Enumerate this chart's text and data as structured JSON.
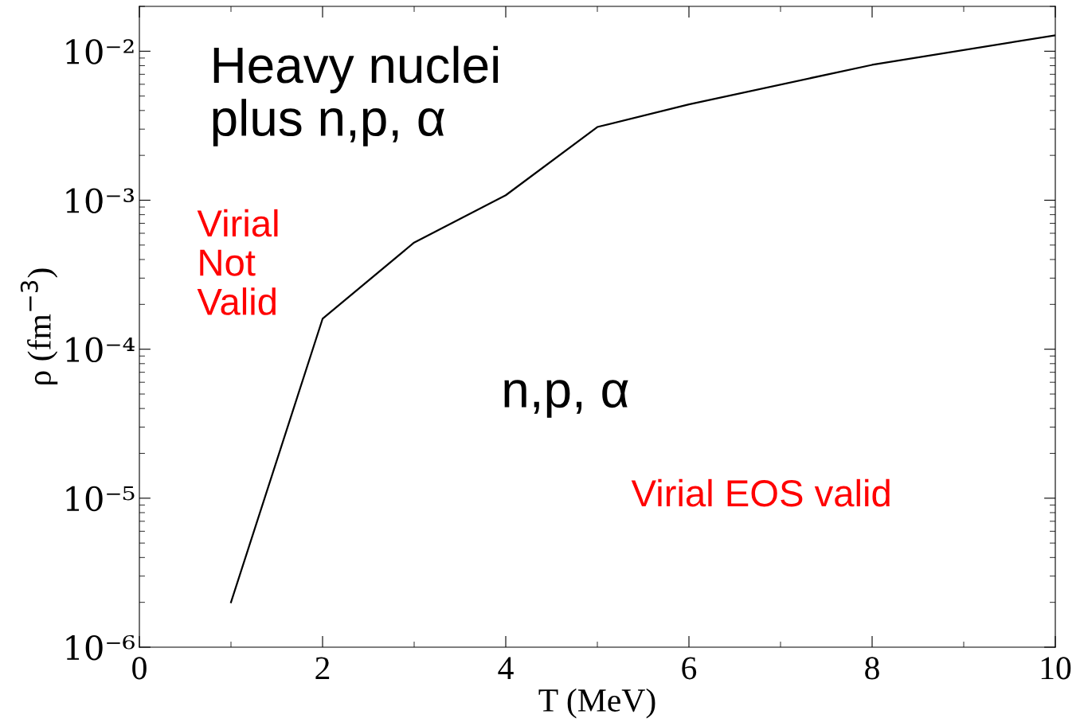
{
  "chart_data": {
    "type": "line",
    "xlabel": "T (MeV)",
    "ylabel": "ρ (fm$^{−3}$)",
    "x": [
      1,
      2,
      3,
      4,
      5,
      6,
      8,
      10
    ],
    "series": [
      {
        "color": "#000000",
        "values": [
          2e-06,
          0.00016,
          0.00052,
          0.00108,
          0.0031,
          0.0044,
          0.0081,
          0.0128
        ]
      }
    ],
    "log": "y",
    "xlim": [
      0,
      10
    ],
    "ylim": [
      1e-06,
      0.02
    ],
    "xticks": [
      0,
      {
        "value": 1,
        "label": null
      },
      2,
      {
        "value": 3,
        "label": null
      },
      4,
      {
        "value": 5,
        "label": null
      },
      6,
      {
        "value": 7,
        "label": null
      },
      8,
      {
        "value": 9,
        "label": null
      },
      10
    ],
    "yticks": [
      {
        "value": 1e-06,
        "label": "10⁻⁶"
      },
      {
        "value": 1e-05,
        "label": "10⁻⁵"
      },
      {
        "value": 0.0001,
        "label": "10⁻⁴"
      },
      {
        "value": 0.001,
        "label": "10⁻³"
      },
      {
        "value": 0.01,
        "label": "10⁻²"
      }
    ],
    "grid": false,
    "marker": "none",
    "line_style": "solid",
    "annotations": [
      "Heavy nuclei\nplus n,p, α",
      "n,p, α",
      "Virial\nNot\nValid",
      "Virial EOS valid"
    ]
  }
}
